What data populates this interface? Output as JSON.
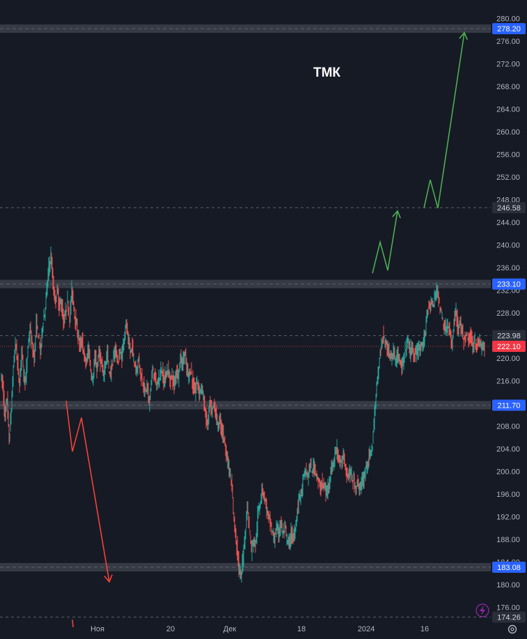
{
  "chart_data": {
    "type": "candlestick",
    "title": "ТМК",
    "ylim": [
      172,
      282
    ],
    "y_ticks": [
      176,
      180,
      184,
      188,
      192,
      196,
      200,
      204,
      208,
      212,
      216,
      220,
      224,
      228,
      232,
      236,
      240,
      244,
      248,
      252,
      256,
      260,
      264,
      268,
      272,
      276,
      280
    ],
    "x_ticks": [
      "Ноя",
      "20",
      "Дек",
      "18",
      "2024",
      "16"
    ],
    "levels": [
      {
        "value": 278.2,
        "label": "278.20",
        "style": "band"
      },
      {
        "value": 246.58,
        "label": "246.58",
        "style": "dashed"
      },
      {
        "value": 233.1,
        "label": "233.10",
        "style": "band"
      },
      {
        "value": 223.98,
        "label": "223.98",
        "style": "dashed"
      },
      {
        "value": 222.1,
        "label": "222.10",
        "style": "dotted-red"
      },
      {
        "value": 211.7,
        "label": "211.70",
        "style": "band"
      },
      {
        "value": 183.08,
        "label": "183.08",
        "style": "band"
      },
      {
        "value": 174.26,
        "label": "174.26",
        "style": "dashed"
      }
    ],
    "price_path": [
      [
        0,
        217
      ],
      [
        3,
        215
      ],
      [
        6,
        209
      ],
      [
        9,
        213
      ],
      [
        12,
        205
      ],
      [
        15,
        211
      ],
      [
        18,
        218
      ],
      [
        21,
        223
      ],
      [
        24,
        219
      ],
      [
        27,
        215
      ],
      [
        30,
        222
      ],
      [
        33,
        217
      ],
      [
        36,
        216
      ],
      [
        39,
        222
      ],
      [
        42,
        225
      ],
      [
        45,
        222
      ],
      [
        48,
        220
      ],
      [
        51,
        226
      ],
      [
        54,
        224
      ],
      [
        57,
        221
      ],
      [
        60,
        226
      ],
      [
        63,
        228
      ],
      [
        66,
        232
      ],
      [
        69,
        236
      ],
      [
        72,
        238
      ],
      [
        75,
        233
      ],
      [
        78,
        230
      ],
      [
        81,
        232
      ],
      [
        84,
        229
      ],
      [
        87,
        230
      ],
      [
        90,
        226
      ],
      [
        93,
        228
      ],
      [
        96,
        230
      ],
      [
        99,
        227
      ],
      [
        102,
        232
      ],
      [
        105,
        229
      ],
      [
        108,
        226
      ],
      [
        111,
        224
      ],
      [
        114,
        222
      ],
      [
        117,
        223
      ],
      [
        120,
        220
      ],
      [
        123,
        219
      ],
      [
        126,
        222
      ],
      [
        129,
        218
      ],
      [
        132,
        216
      ],
      [
        135,
        220
      ],
      [
        138,
        218
      ],
      [
        141,
        221
      ],
      [
        144,
        219
      ],
      [
        147,
        217
      ],
      [
        150,
        219
      ],
      [
        153,
        221
      ],
      [
        156,
        217
      ],
      [
        159,
        218
      ],
      [
        162,
        220
      ],
      [
        165,
        222
      ],
      [
        168,
        219
      ],
      [
        171,
        221
      ],
      [
        174,
        220
      ],
      [
        177,
        224
      ],
      [
        180,
        226
      ],
      [
        183,
        223
      ],
      [
        186,
        221
      ],
      [
        189,
        222
      ],
      [
        192,
        219
      ],
      [
        195,
        218
      ],
      [
        198,
        220
      ],
      [
        201,
        217
      ],
      [
        204,
        216
      ],
      [
        207,
        214
      ],
      [
        210,
        215
      ],
      [
        213,
        212
      ],
      [
        216,
        216
      ],
      [
        219,
        218
      ],
      [
        222,
        216
      ],
      [
        225,
        215
      ],
      [
        228,
        217
      ],
      [
        231,
        218
      ],
      [
        234,
        216
      ],
      [
        237,
        217
      ],
      [
        240,
        218
      ],
      [
        243,
        216
      ],
      [
        246,
        217
      ],
      [
        249,
        215
      ],
      [
        252,
        218
      ],
      [
        255,
        217
      ],
      [
        258,
        220
      ],
      [
        261,
        219
      ],
      [
        264,
        221
      ],
      [
        267,
        218
      ],
      [
        270,
        217
      ],
      [
        273,
        218
      ],
      [
        276,
        215
      ],
      [
        279,
        214
      ],
      [
        282,
        216
      ],
      [
        285,
        214
      ],
      [
        288,
        215
      ],
      [
        291,
        213
      ],
      [
        294,
        210
      ],
      [
        297,
        208
      ],
      [
        300,
        212
      ],
      [
        303,
        210
      ],
      [
        306,
        212
      ],
      [
        309,
        210
      ],
      [
        312,
        208
      ],
      [
        315,
        209
      ],
      [
        318,
        207
      ],
      [
        321,
        206
      ],
      [
        324,
        203
      ],
      [
        327,
        201
      ],
      [
        330,
        199
      ],
      [
        333,
        195
      ],
      [
        336,
        190
      ],
      [
        339,
        187
      ],
      [
        342,
        183
      ],
      [
        345,
        181
      ],
      [
        348,
        185
      ],
      [
        351,
        189
      ],
      [
        354,
        194
      ],
      [
        357,
        190
      ],
      [
        360,
        186
      ],
      [
        363,
        188
      ],
      [
        366,
        187
      ],
      [
        369,
        192
      ],
      [
        372,
        194
      ],
      [
        375,
        197
      ],
      [
        378,
        196
      ],
      [
        381,
        194
      ],
      [
        384,
        192
      ],
      [
        387,
        191
      ],
      [
        390,
        189
      ],
      [
        393,
        188
      ],
      [
        396,
        190
      ],
      [
        399,
        189
      ],
      [
        402,
        191
      ],
      [
        405,
        189
      ],
      [
        408,
        190
      ],
      [
        411,
        188
      ],
      [
        414,
        187
      ],
      [
        417,
        189
      ],
      [
        420,
        188
      ],
      [
        423,
        190
      ],
      [
        426,
        193
      ],
      [
        429,
        196
      ],
      [
        432,
        196
      ],
      [
        435,
        199
      ],
      [
        438,
        200
      ],
      [
        441,
        199
      ],
      [
        444,
        201
      ],
      [
        447,
        200
      ],
      [
        450,
        201
      ],
      [
        453,
        200
      ],
      [
        456,
        198
      ],
      [
        459,
        197
      ],
      [
        462,
        198
      ],
      [
        465,
        197
      ],
      [
        468,
        196
      ],
      [
        471,
        198
      ],
      [
        474,
        200
      ],
      [
        477,
        201
      ],
      [
        480,
        203
      ],
      [
        483,
        204
      ],
      [
        486,
        202
      ],
      [
        489,
        201
      ],
      [
        492,
        203
      ],
      [
        495,
        201
      ],
      [
        498,
        199
      ],
      [
        501,
        200
      ],
      [
        504,
        199
      ],
      [
        507,
        198
      ],
      [
        510,
        197
      ],
      [
        513,
        198
      ],
      [
        516,
        197
      ],
      [
        519,
        198
      ],
      [
        522,
        199
      ],
      [
        525,
        201
      ],
      [
        528,
        202
      ],
      [
        531,
        203
      ],
      [
        534,
        205
      ],
      [
        537,
        210
      ],
      [
        540,
        215
      ],
      [
        543,
        219
      ],
      [
        546,
        222
      ],
      [
        549,
        224
      ],
      [
        552,
        223
      ],
      [
        555,
        222
      ],
      [
        558,
        221
      ],
      [
        561,
        220
      ],
      [
        564,
        221
      ],
      [
        567,
        220
      ],
      [
        570,
        221
      ],
      [
        573,
        219
      ],
      [
        576,
        218
      ],
      [
        579,
        220
      ],
      [
        582,
        222
      ],
      [
        585,
        223
      ],
      [
        588,
        221
      ],
      [
        591,
        222
      ],
      [
        594,
        220
      ],
      [
        597,
        221
      ],
      [
        600,
        222
      ],
      [
        603,
        221
      ],
      [
        606,
        222
      ],
      [
        609,
        224
      ],
      [
        612,
        228
      ],
      [
        615,
        229
      ],
      [
        618,
        230
      ],
      [
        621,
        229
      ],
      [
        624,
        231
      ],
      [
        627,
        233
      ],
      [
        630,
        229
      ],
      [
        633,
        228
      ],
      [
        636,
        226
      ],
      [
        639,
        225
      ],
      [
        642,
        226
      ],
      [
        645,
        224
      ],
      [
        648,
        222
      ],
      [
        651,
        227
      ],
      [
        654,
        228
      ],
      [
        657,
        225
      ],
      [
        660,
        226
      ],
      [
        663,
        224
      ],
      [
        666,
        223
      ],
      [
        669,
        224
      ],
      [
        672,
        223
      ],
      [
        675,
        224
      ],
      [
        678,
        222
      ],
      [
        681,
        223
      ],
      [
        684,
        222
      ],
      [
        687,
        223
      ],
      [
        690,
        222
      ],
      [
        693,
        222
      ],
      [
        695,
        222.1
      ]
    ],
    "annotations": {
      "red_arrow_down": [
        [
          95,
          212.5
        ],
        [
          104,
          203.5
        ],
        [
          117,
          209.5
        ],
        [
          157,
          180.5
        ]
      ],
      "green_zigzag_1": [
        [
          535,
          235
        ],
        [
          546,
          240.5
        ],
        [
          557,
          235.5
        ],
        [
          571,
          246
        ]
      ],
      "green_zigzag_2": [
        [
          609,
          246.5
        ],
        [
          618,
          251.5
        ],
        [
          629,
          246.5
        ],
        [
          667,
          277.5
        ]
      ],
      "red_stub_bottom": [
        [
          104,
          173.8
        ],
        [
          105,
          172.5
        ]
      ]
    },
    "colors": {
      "background": "#161a25",
      "up": "#26a69a",
      "down": "#ef5350",
      "band": "#363a45",
      "level_label_blue": "#2962ff",
      "last_price_label": "#f23645",
      "dashed_label_bg": "#4a4e59",
      "arrow_green": "#4caf50",
      "arrow_red": "#f44336"
    }
  }
}
